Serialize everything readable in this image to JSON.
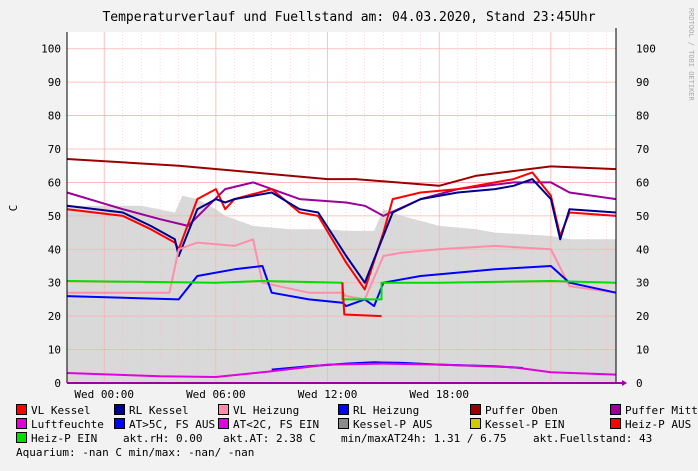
{
  "chart_data": {
    "type": "line",
    "title": "Temperaturverlauf und Fuellstand am: 04.03.2020, Stand 23:45Uhr",
    "ylabel": "C",
    "watermark": "RRDTOOL / TOBI OETIKER",
    "ylim": [
      0,
      105
    ],
    "xlim": [
      -2,
      27.5
    ],
    "yticks": [
      0,
      10,
      20,
      30,
      40,
      50,
      60,
      70,
      80,
      90,
      100
    ],
    "xticks": [
      {
        "x": 0,
        "label": "Wed 00:00"
      },
      {
        "x": 6,
        "label": "Wed 06:00"
      },
      {
        "x": 12,
        "label": "Wed 12:00"
      },
      {
        "x": 18,
        "label": "Wed 18:00"
      }
    ],
    "grid": true,
    "colors": {
      "background": "#f2f2f2",
      "plot": "#ffffff",
      "area": "#d9d9d9",
      "grid": "#ffb0b0"
    },
    "area_series": {
      "name": "Fuellstand",
      "color": "#d9d9d9",
      "x": [
        -2,
        2,
        3.8,
        4.2,
        5,
        6,
        6.5,
        8,
        10,
        11,
        12,
        13,
        13.5,
        14.5,
        15,
        16,
        18,
        20,
        21,
        24,
        25,
        27.5
      ],
      "y": [
        53,
        53,
        51,
        56,
        55,
        52,
        50,
        47,
        46,
        46,
        46,
        45.5,
        45.5,
        45.5,
        52,
        50,
        47,
        46,
        45,
        44,
        43,
        43
      ]
    },
    "series": [
      {
        "name": "Puffer Oben",
        "color": "#9b0000",
        "x": [
          -2,
          4,
          8,
          12,
          13.5,
          18,
          20,
          24,
          27.5
        ],
        "y": [
          67,
          65,
          63,
          61,
          61,
          59,
          62,
          64.8,
          64
        ]
      },
      {
        "name": "Puffer Mitte",
        "color": "#9b009b",
        "x": [
          -2,
          1,
          3,
          4.5,
          6.5,
          8,
          10.5,
          13,
          14,
          15,
          17,
          19,
          22,
          24,
          25,
          27.5
        ],
        "y": [
          57,
          52,
          49,
          47,
          58,
          60,
          55,
          54,
          53,
          50,
          55,
          58,
          60,
          60,
          57,
          55
        ]
      },
      {
        "name": "VL Kessel",
        "color": "#ff0000",
        "x": [
          -2,
          1,
          2.5,
          3.8,
          4,
          5,
          6,
          6.5,
          7,
          9,
          10.5,
          11.5,
          13,
          14,
          15,
          15.5,
          17,
          19,
          21,
          22,
          23,
          24,
          24.5,
          25,
          27.5
        ],
        "y": [
          52,
          50,
          46,
          42,
          40,
          55,
          58,
          52,
          55,
          58,
          51,
          50,
          36,
          28,
          45,
          55,
          57,
          58,
          60,
          61,
          63,
          56,
          44,
          51,
          50
        ]
      },
      {
        "name": "RL Kessel",
        "color": "#00008b",
        "x": [
          -2,
          1,
          2.5,
          3.8,
          4,
          5,
          6,
          6.5,
          7,
          9,
          10.5,
          11.5,
          13,
          14,
          15,
          15.5,
          17,
          19,
          21,
          22,
          23,
          24,
          24.5,
          25,
          27.5
        ],
        "y": [
          53,
          51,
          47,
          43,
          38,
          52,
          55,
          54,
          55,
          57,
          52,
          51,
          38,
          30,
          44,
          51,
          55,
          57,
          58,
          59,
          61,
          55,
          43,
          52,
          51
        ]
      },
      {
        "name": "VL Heizung",
        "color": "#ff8dab",
        "x": [
          -2,
          3.5,
          4,
          5,
          7,
          8,
          8.5,
          11,
          12.8,
          13,
          14,
          15,
          16,
          18,
          21,
          24,
          25,
          27.5
        ],
        "y": [
          27,
          27,
          40,
          42,
          41,
          43,
          30,
          27,
          27,
          26,
          25,
          38,
          39,
          40,
          41,
          40,
          29,
          27
        ]
      },
      {
        "name": "RL Heizung",
        "color": "#0000ff",
        "x": [
          -2,
          4,
          5,
          7,
          8.5,
          9,
          11,
          12.8,
          13,
          14,
          14.5,
          15,
          17,
          21,
          24,
          25,
          27.5
        ],
        "y": [
          26,
          25,
          32,
          34,
          35,
          27,
          25,
          24,
          23,
          25,
          23,
          30,
          32,
          34,
          35,
          30,
          27
        ]
      },
      {
        "name": "Heiz-P EIN",
        "color": "#00dd00",
        "x": [
          -2,
          6,
          8.5,
          12.8,
          12.8,
          14.9,
          14.9,
          18,
          24,
          27.5
        ],
        "y": [
          30.5,
          30,
          30.5,
          30,
          25,
          25,
          30,
          30,
          30.5,
          30
        ]
      },
      {
        "name": "Heiz-P AUS",
        "color": "#ff0000",
        "x": [
          12.8,
          12.9,
          14.9
        ],
        "y": [
          30,
          20.5,
          20
        ]
      },
      {
        "name": "AT>5C, FS AUS",
        "color": "#0000ff",
        "x": [
          9,
          11,
          13,
          14.5,
          16,
          18,
          21,
          22.5
        ],
        "y": [
          4,
          5,
          5.8,
          6.2,
          6,
          5.5,
          5,
          4.5
        ]
      },
      {
        "name": "Luftfeuchte",
        "color": "#e000e0",
        "x": [
          -2,
          3,
          6,
          9,
          12,
          15,
          18,
          22,
          24,
          27.5
        ],
        "y": [
          3,
          2,
          1.8,
          3.5,
          5.5,
          5.8,
          5.5,
          4.7,
          3.2,
          2.5
        ]
      }
    ]
  },
  "legend": {
    "rows": [
      [
        {
          "label": "VL Kessel",
          "color": "#ff0000"
        },
        {
          "label": "RL Kessel",
          "color": "#00008b"
        },
        {
          "label": "VL Heizung",
          "color": "#ff8dab"
        },
        {
          "label": "RL Heizung",
          "color": "#0000ff"
        },
        {
          "label": "Puffer Oben",
          "color": "#9b0000"
        },
        {
          "label": "Puffer Mitte",
          "color": "#9b009b"
        }
      ],
      [
        {
          "label": "Luftfeuchte",
          "color": "#e000e0"
        },
        {
          "label": "AT>5C, FS AUS",
          "color": "#0000ff"
        },
        {
          "label": "AT<2C, FS EIN",
          "color": "#e000e0"
        },
        {
          "label": "Kessel-P AUS",
          "color": "#8c8c8c"
        },
        {
          "label": "Kessel-P EIN",
          "color": "#cccc00"
        },
        {
          "label": "Heiz-P AUS",
          "color": "#ff0000"
        }
      ]
    ],
    "row3_item": {
      "label": "Heiz-P EIN",
      "color": "#00dd00"
    },
    "info": {
      "rh": "akt.rH: 0.00",
      "at": "akt.AT: 2.38 C",
      "minmax": "min/maxAT24h: 1.31 / 6.75",
      "fuell": "akt.Fuellstand:   43"
    },
    "aquarium": "Aquarium: -nan C  min/max: -nan/ -nan"
  }
}
